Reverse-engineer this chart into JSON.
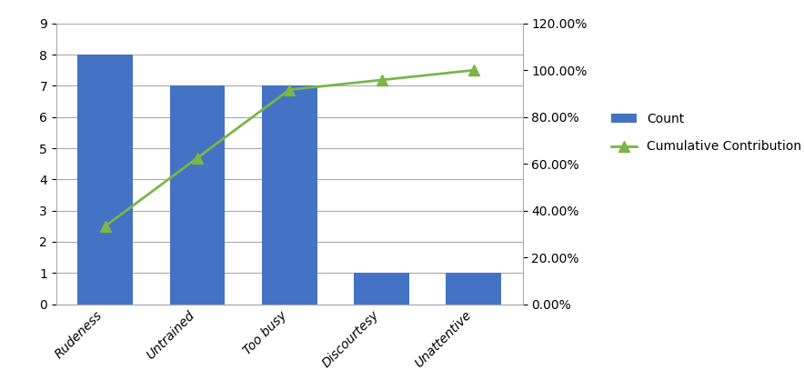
{
  "categories": [
    "Rudeness",
    "Untrained",
    "Too busy",
    "Discourtesy",
    "Unattentive"
  ],
  "counts": [
    8,
    7,
    7,
    1,
    1
  ],
  "cumulative_pct": [
    0.3333,
    0.625,
    0.9167,
    0.9583,
    1.0
  ],
  "bar_color": "#4472C4",
  "line_color": "#7AB648",
  "marker_style": "^",
  "ylim_left": [
    0,
    9
  ],
  "ylim_right": [
    0,
    1.2
  ],
  "yticks_left": [
    0,
    1,
    2,
    3,
    4,
    5,
    6,
    7,
    8,
    9
  ],
  "yticks_right": [
    0.0,
    0.2,
    0.4,
    0.6,
    0.8,
    1.0,
    1.2
  ],
  "legend_labels": [
    "Count",
    "Cumulative Contribution"
  ],
  "bg_color": "#FFFFFF",
  "grid_color": "#AAAAAA"
}
